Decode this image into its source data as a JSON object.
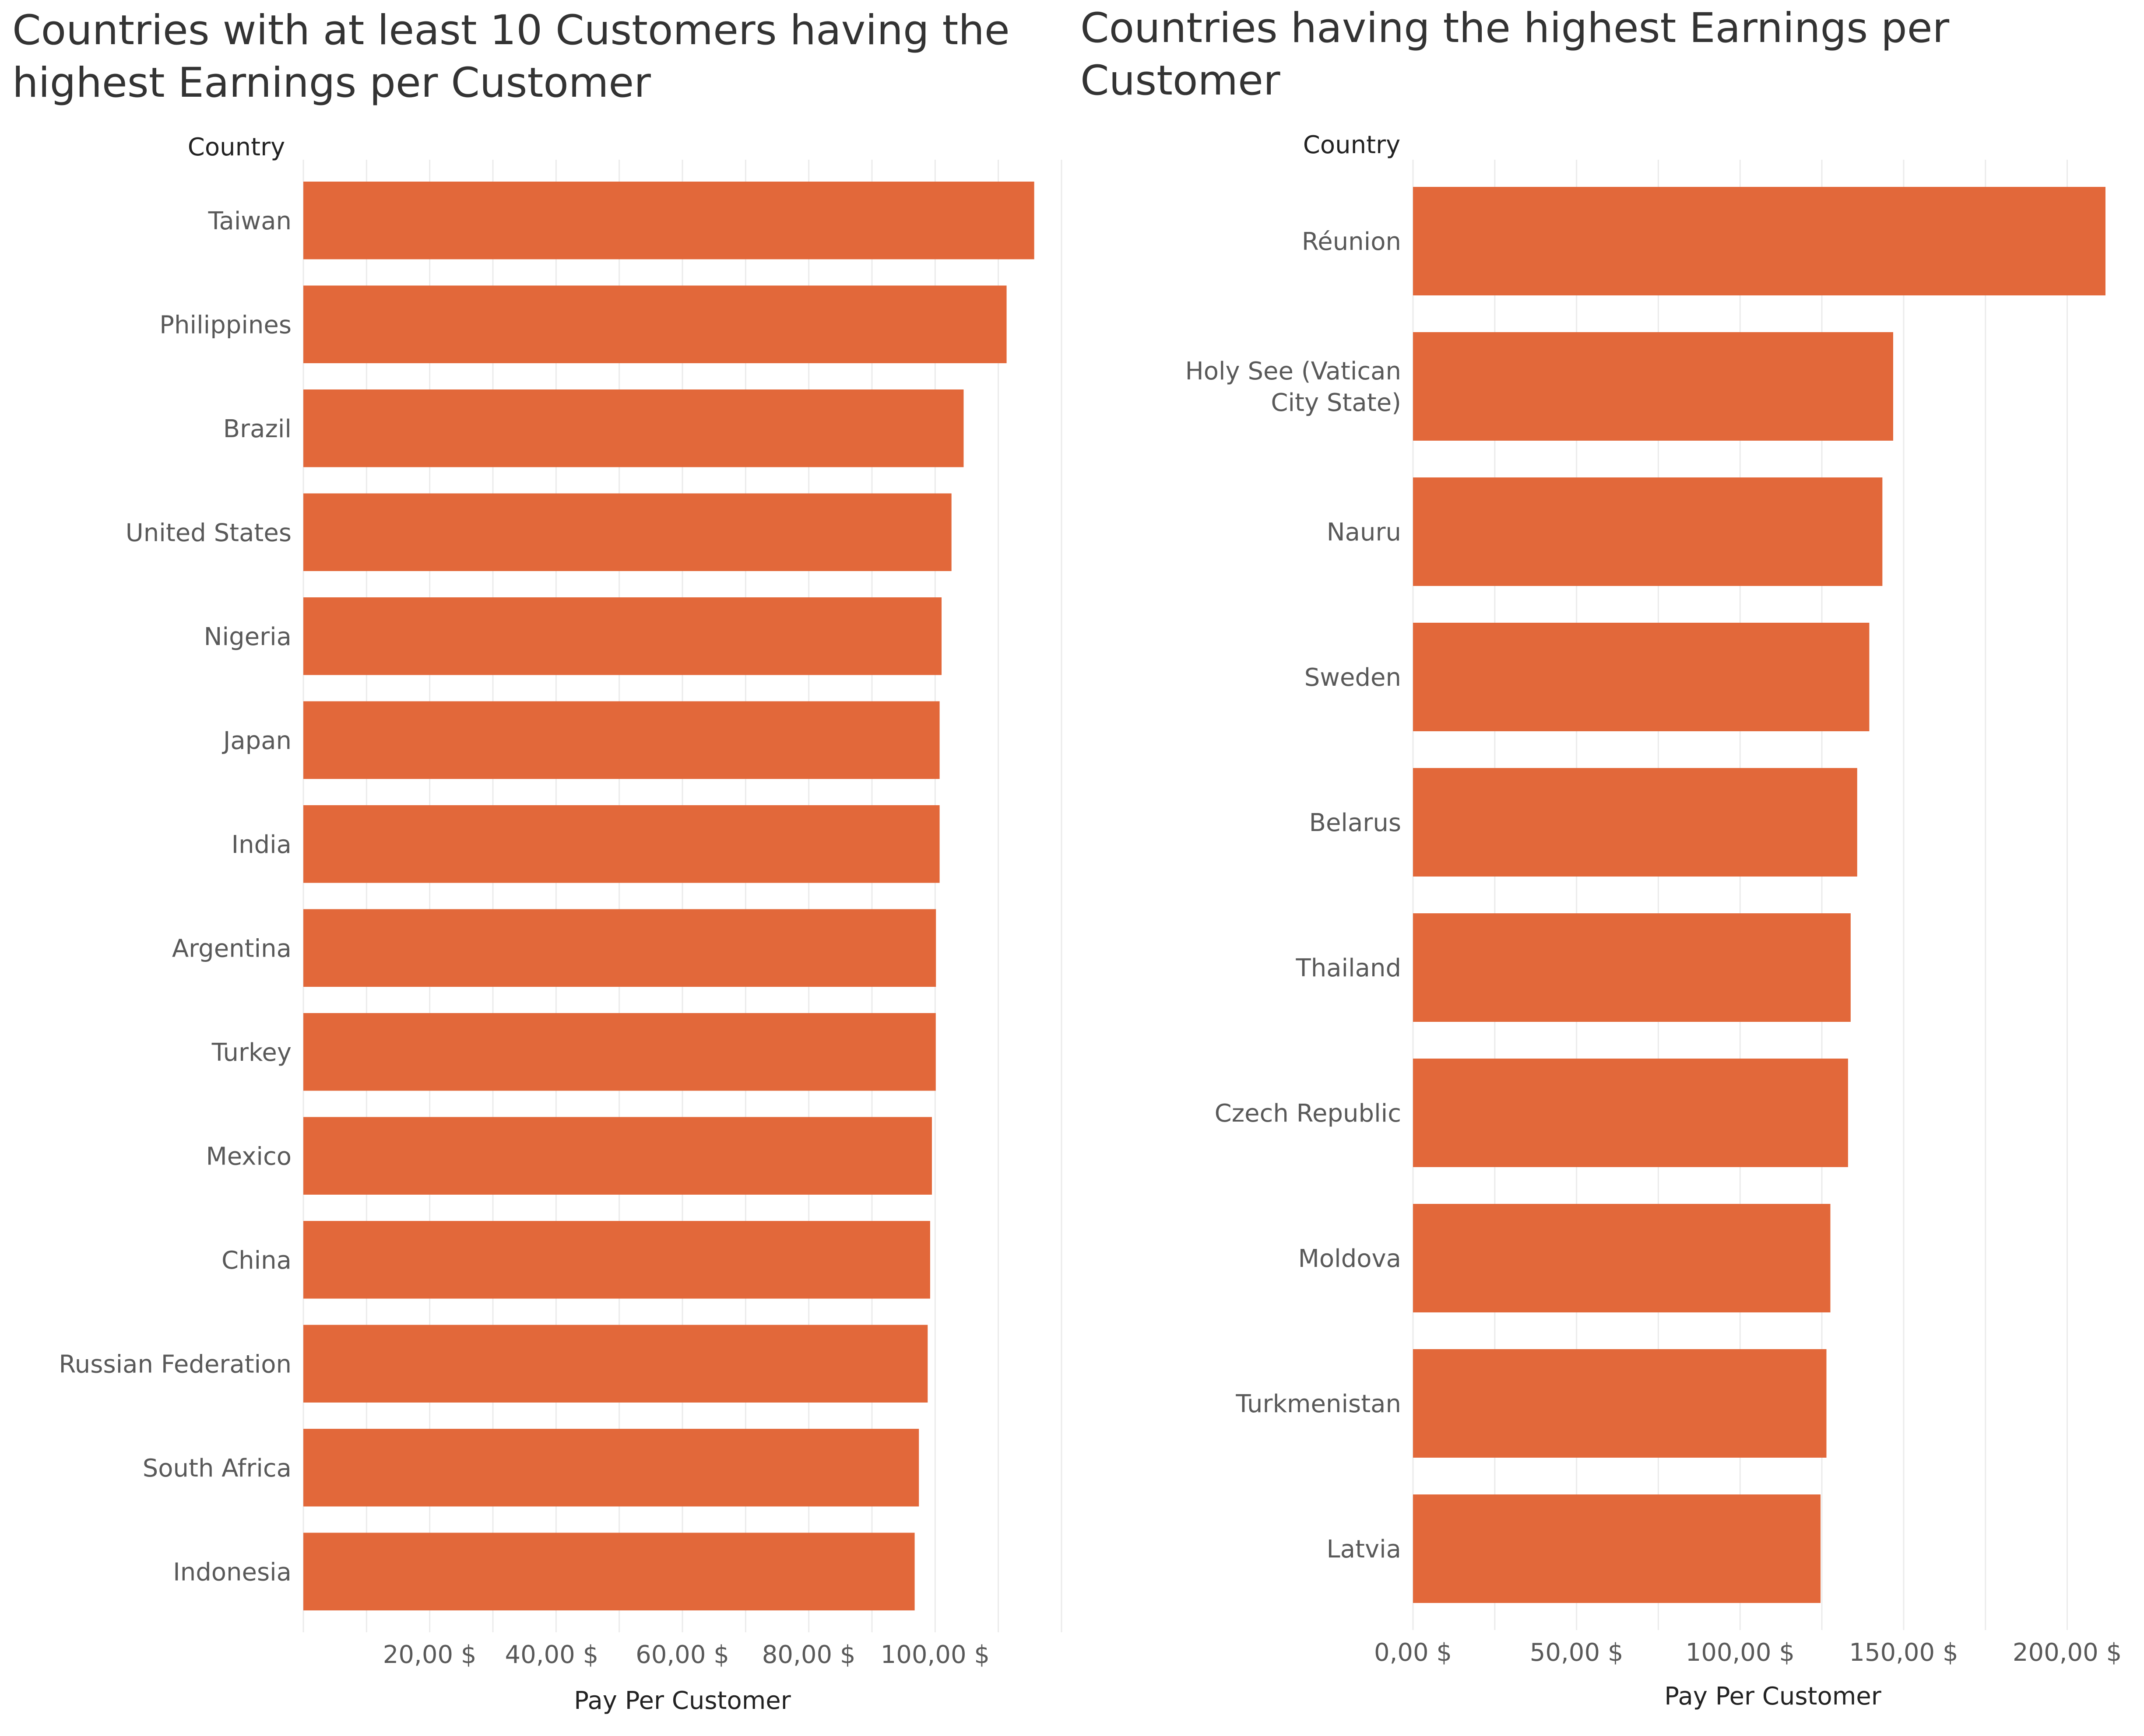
{
  "chart_data": [
    {
      "type": "bar",
      "orientation": "horizontal",
      "title": "Countries with at least 10 Customers having the highest Earnings per Customer",
      "ylabel": "Country",
      "xlabel": "Pay Per Customer",
      "categories": [
        "Taiwan",
        "Philippines",
        "Brazil",
        "United States",
        "Nigeria",
        "Japan",
        "India",
        "Argentina",
        "Turkey",
        "Mexico",
        "China",
        "Russian Federation",
        "South Africa",
        "Indonesia"
      ],
      "values": [
        115.68,
        111.31,
        104.51,
        102.59,
        101.02,
        100.71,
        100.71,
        100.13,
        100.1,
        99.49,
        99.21,
        98.82,
        97.43,
        96.76
      ],
      "xticks": [
        20,
        40,
        60,
        80,
        100
      ],
      "xtick_labels": [
        "20,00 $",
        "40,00 $",
        "60,00 $",
        "80,00 $",
        "100,00 $"
      ],
      "xlim": [
        0,
        120
      ],
      "grid": true,
      "bar_color": "#E2683A"
    },
    {
      "type": "bar",
      "orientation": "horizontal",
      "title": "Countries having the highest Earnings per Customer",
      "ylabel": "Country",
      "xlabel": "Pay Per Customer",
      "categories": [
        "Réunion",
        "Holy See (Vatican City State)",
        "Nauru",
        "Sweden",
        "Belarus",
        "Thailand",
        "Czech Republic",
        "Moldova",
        "Turkmenistan",
        "Latvia"
      ],
      "values": [
        211.7,
        146.8,
        143.5,
        139.5,
        135.8,
        133.8,
        133.0,
        127.6,
        126.4,
        124.6
      ],
      "xticks": [
        0,
        50,
        100,
        150,
        200
      ],
      "xtick_labels": [
        "0,00 $",
        "50,00 $",
        "100,00 $",
        "150,00 $",
        "200,00 $"
      ],
      "xlim": [
        0,
        220
      ],
      "grid": true,
      "bar_color": "#E2683A"
    }
  ]
}
